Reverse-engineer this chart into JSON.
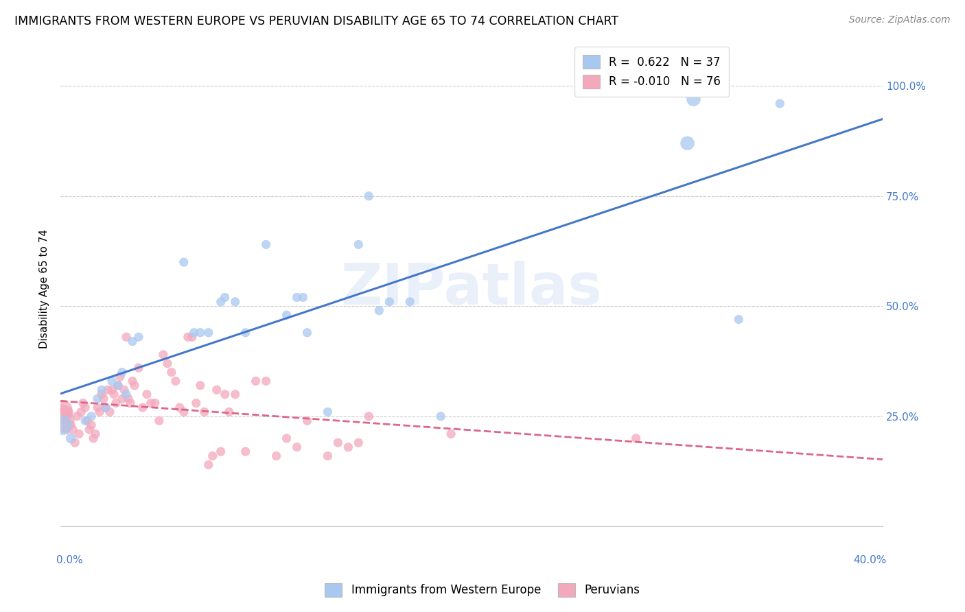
{
  "title": "IMMIGRANTS FROM WESTERN EUROPE VS PERUVIAN DISABILITY AGE 65 TO 74 CORRELATION CHART",
  "source": "Source: ZipAtlas.com",
  "ylabel": "Disability Age 65 to 74",
  "yticks": [
    0.0,
    0.25,
    0.5,
    0.75,
    1.0
  ],
  "ytick_labels": [
    "",
    "25.0%",
    "50.0%",
    "75.0%",
    "100.0%"
  ],
  "R_blue": 0.622,
  "N_blue": 37,
  "R_pink": -0.01,
  "N_pink": 76,
  "blue_color": "#a8c8f0",
  "pink_color": "#f4a8bc",
  "blue_line_color": "#4477cc",
  "pink_line_color": "#dd6688",
  "watermark": "ZIPatlas",
  "blue_points": [
    [
      0.001,
      0.23
    ],
    [
      0.005,
      0.2
    ],
    [
      0.012,
      0.24
    ],
    [
      0.015,
      0.25
    ],
    [
      0.018,
      0.29
    ],
    [
      0.02,
      0.31
    ],
    [
      0.022,
      0.27
    ],
    [
      0.025,
      0.33
    ],
    [
      0.028,
      0.32
    ],
    [
      0.03,
      0.35
    ],
    [
      0.032,
      0.3
    ],
    [
      0.035,
      0.42
    ],
    [
      0.038,
      0.43
    ],
    [
      0.06,
      0.6
    ],
    [
      0.065,
      0.44
    ],
    [
      0.068,
      0.44
    ],
    [
      0.072,
      0.44
    ],
    [
      0.078,
      0.51
    ],
    [
      0.08,
      0.52
    ],
    [
      0.085,
      0.51
    ],
    [
      0.09,
      0.44
    ],
    [
      0.1,
      0.64
    ],
    [
      0.11,
      0.48
    ],
    [
      0.115,
      0.52
    ],
    [
      0.118,
      0.52
    ],
    [
      0.12,
      0.44
    ],
    [
      0.13,
      0.26
    ],
    [
      0.145,
      0.64
    ],
    [
      0.15,
      0.75
    ],
    [
      0.155,
      0.49
    ],
    [
      0.16,
      0.51
    ],
    [
      0.17,
      0.51
    ],
    [
      0.185,
      0.25
    ],
    [
      0.33,
      0.47
    ],
    [
      0.305,
      0.87
    ],
    [
      0.308,
      0.97
    ],
    [
      0.35,
      0.96
    ]
  ],
  "blue_point_sizes": [
    400,
    100,
    80,
    80,
    80,
    80,
    80,
    80,
    80,
    80,
    80,
    80,
    80,
    80,
    80,
    80,
    80,
    80,
    80,
    80,
    80,
    80,
    80,
    80,
    80,
    80,
    80,
    80,
    80,
    80,
    80,
    80,
    80,
    80,
    200,
    200,
    80
  ],
  "pink_points": [
    [
      0.001,
      0.24
    ],
    [
      0.002,
      0.25
    ],
    [
      0.003,
      0.22
    ],
    [
      0.004,
      0.26
    ],
    [
      0.005,
      0.23
    ],
    [
      0.006,
      0.22
    ],
    [
      0.007,
      0.19
    ],
    [
      0.008,
      0.25
    ],
    [
      0.009,
      0.21
    ],
    [
      0.01,
      0.26
    ],
    [
      0.011,
      0.28
    ],
    [
      0.012,
      0.27
    ],
    [
      0.013,
      0.24
    ],
    [
      0.014,
      0.22
    ],
    [
      0.015,
      0.23
    ],
    [
      0.016,
      0.2
    ],
    [
      0.017,
      0.21
    ],
    [
      0.018,
      0.27
    ],
    [
      0.019,
      0.26
    ],
    [
      0.02,
      0.3
    ],
    [
      0.021,
      0.29
    ],
    [
      0.022,
      0.27
    ],
    [
      0.023,
      0.31
    ],
    [
      0.024,
      0.26
    ],
    [
      0.025,
      0.31
    ],
    [
      0.026,
      0.3
    ],
    [
      0.027,
      0.28
    ],
    [
      0.028,
      0.32
    ],
    [
      0.029,
      0.34
    ],
    [
      0.03,
      0.29
    ],
    [
      0.031,
      0.31
    ],
    [
      0.032,
      0.43
    ],
    [
      0.033,
      0.29
    ],
    [
      0.034,
      0.28
    ],
    [
      0.035,
      0.33
    ],
    [
      0.036,
      0.32
    ],
    [
      0.038,
      0.36
    ],
    [
      0.04,
      0.27
    ],
    [
      0.042,
      0.3
    ],
    [
      0.044,
      0.28
    ],
    [
      0.046,
      0.28
    ],
    [
      0.048,
      0.24
    ],
    [
      0.05,
      0.39
    ],
    [
      0.052,
      0.37
    ],
    [
      0.054,
      0.35
    ],
    [
      0.056,
      0.33
    ],
    [
      0.058,
      0.27
    ],
    [
      0.06,
      0.26
    ],
    [
      0.062,
      0.43
    ],
    [
      0.064,
      0.43
    ],
    [
      0.066,
      0.28
    ],
    [
      0.068,
      0.32
    ],
    [
      0.07,
      0.26
    ],
    [
      0.072,
      0.14
    ],
    [
      0.074,
      0.16
    ],
    [
      0.076,
      0.31
    ],
    [
      0.078,
      0.17
    ],
    [
      0.08,
      0.3
    ],
    [
      0.082,
      0.26
    ],
    [
      0.085,
      0.3
    ],
    [
      0.09,
      0.17
    ],
    [
      0.095,
      0.33
    ],
    [
      0.1,
      0.33
    ],
    [
      0.105,
      0.16
    ],
    [
      0.11,
      0.2
    ],
    [
      0.115,
      0.18
    ],
    [
      0.12,
      0.24
    ],
    [
      0.13,
      0.16
    ],
    [
      0.135,
      0.19
    ],
    [
      0.14,
      0.18
    ],
    [
      0.145,
      0.19
    ],
    [
      0.15,
      0.25
    ],
    [
      0.19,
      0.21
    ],
    [
      0.28,
      0.2
    ],
    [
      0.001,
      0.255
    ],
    [
      0.001,
      0.265
    ]
  ],
  "pink_point_sizes": [
    600,
    80,
    80,
    80,
    80,
    80,
    80,
    80,
    80,
    80,
    80,
    80,
    80,
    80,
    80,
    80,
    80,
    80,
    80,
    80,
    80,
    80,
    80,
    80,
    80,
    80,
    80,
    80,
    80,
    80,
    80,
    80,
    80,
    80,
    80,
    80,
    80,
    80,
    80,
    80,
    80,
    80,
    80,
    80,
    80,
    80,
    80,
    80,
    80,
    80,
    80,
    80,
    80,
    80,
    80,
    80,
    80,
    80,
    80,
    80,
    80,
    80,
    80,
    80,
    80,
    80,
    80,
    80,
    80,
    80,
    80,
    80,
    80,
    80,
    400,
    400
  ]
}
